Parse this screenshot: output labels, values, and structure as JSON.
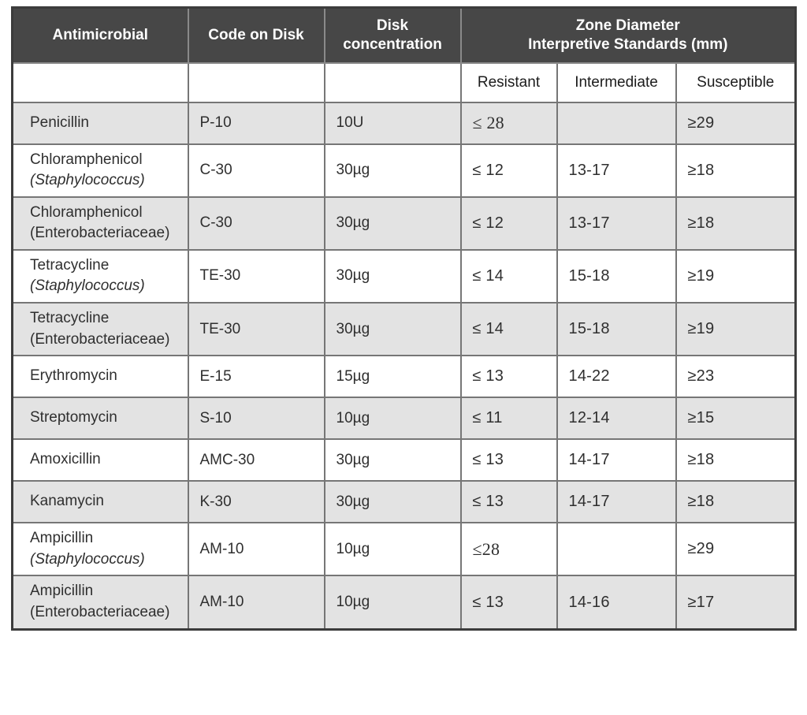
{
  "table": {
    "columns": {
      "antimicrobial": "Antimicrobial",
      "code": "Code on Disk",
      "concentration": "Disk\nconcentration",
      "zone": "Zone Diameter\nInterpretive Standards (mm)"
    },
    "subcolumns": [
      "Resistant",
      "Intermediate",
      "Susceptible"
    ],
    "rows": [
      {
        "name": "Penicillin",
        "organism": "",
        "organism_italic": false,
        "code": "P-10",
        "concentration": "10U",
        "resistant": "≤ 28",
        "intermediate": "",
        "susceptible": "≥29",
        "shaded": true,
        "resistant_serif": true
      },
      {
        "name": "Chloramphenicol",
        "organism": "(Staphylococcus)",
        "organism_italic": true,
        "code": "C-30",
        "concentration": "30µg",
        "resistant": "≤ 12",
        "intermediate": "13-17",
        "susceptible": "≥18",
        "shaded": false,
        "resistant_serif": false
      },
      {
        "name": "Chloramphenicol",
        "organism": "(Enterobacteriaceae)",
        "organism_italic": false,
        "code": "C-30",
        "concentration": "30µg",
        "resistant": "≤ 12",
        "intermediate": "13-17",
        "susceptible": "≥18",
        "shaded": true,
        "resistant_serif": false
      },
      {
        "name": "Tetracycline",
        "organism": "(Staphylococcus)",
        "organism_italic": true,
        "code": "TE-30",
        "concentration": "30µg",
        "resistant": "≤ 14",
        "intermediate": "15-18",
        "susceptible": "≥19",
        "shaded": false,
        "resistant_serif": false
      },
      {
        "name": "Tetracycline",
        "organism": "(Enterobacteriaceae)",
        "organism_italic": false,
        "code": "TE-30",
        "concentration": "30µg",
        "resistant": "≤ 14",
        "intermediate": "15-18",
        "susceptible": "≥19",
        "shaded": true,
        "resistant_serif": false
      },
      {
        "name": "Erythromycin",
        "organism": "",
        "organism_italic": false,
        "code": "E-15",
        "concentration": "15µg",
        "resistant": "≤ 13",
        "intermediate": "14-22",
        "susceptible": "≥23",
        "shaded": false,
        "resistant_serif": false
      },
      {
        "name": "Streptomycin",
        "organism": "",
        "organism_italic": false,
        "code": "S-10",
        "concentration": "10µg",
        "resistant": "≤ 11",
        "intermediate": "12-14",
        "susceptible": "≥15",
        "shaded": true,
        "resistant_serif": false
      },
      {
        "name": "Amoxicillin",
        "organism": "",
        "organism_italic": false,
        "code": "AMC-30",
        "concentration": "30µg",
        "resistant": "≤ 13",
        "intermediate": "14-17",
        "susceptible": "≥18",
        "shaded": false,
        "resistant_serif": false
      },
      {
        "name": "Kanamycin",
        "organism": "",
        "organism_italic": false,
        "code": "K-30",
        "concentration": "30µg",
        "resistant": "≤ 13",
        "intermediate": "14-17",
        "susceptible": "≥18",
        "shaded": true,
        "resistant_serif": false
      },
      {
        "name": "Ampicillin",
        "organism": "(Staphylococcus)",
        "organism_italic": true,
        "code": "AM-10",
        "concentration": "10µg",
        "resistant": "≤28",
        "intermediate": "",
        "susceptible": "≥29",
        "shaded": false,
        "resistant_serif": true
      },
      {
        "name": "Ampicillin",
        "organism": "(Enterobacteriaceae)",
        "organism_italic": false,
        "code": "AM-10",
        "concentration": "10µg",
        "resistant": "≤ 13",
        "intermediate": "14-16",
        "susceptible": "≥17",
        "shaded": true,
        "resistant_serif": false
      }
    ]
  },
  "colors": {
    "header_bg": "#474747",
    "header_text": "#ffffff",
    "row_shade": "#e3e3e3",
    "grid_border": "#767676",
    "outer_border": "#3c3c3c",
    "text": "#2f2f2f"
  }
}
